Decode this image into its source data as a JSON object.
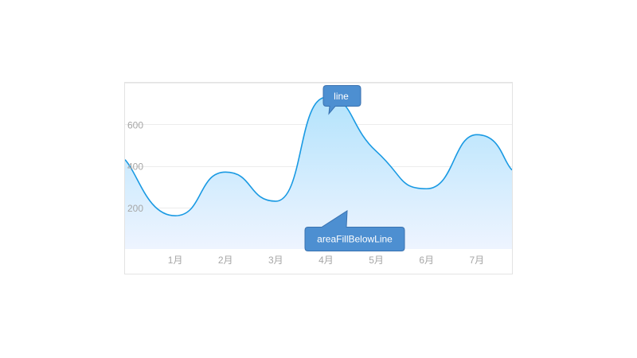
{
  "chart_data": {
    "type": "area",
    "categories": [
      "1月",
      "2月",
      "3月",
      "4月",
      "5月",
      "6月",
      "7月"
    ],
    "x_ticks": [
      "1月",
      "2月",
      "3月",
      "4月",
      "5月",
      "6月",
      "7月"
    ],
    "y_ticks": [
      "200",
      "400",
      "600"
    ],
    "ylim": [
      0,
      800
    ],
    "xlim": [
      0,
      7.7
    ],
    "grid": true,
    "series": [
      {
        "x": [
          0,
          1,
          2,
          3,
          4,
          5,
          6,
          7,
          7.7
        ],
        "values": [
          430,
          160,
          370,
          230,
          730,
          470,
          290,
          550,
          380
        ]
      }
    ],
    "annotations": [
      {
        "label": "line",
        "target": "line"
      },
      {
        "label": "areaFillBelowLine",
        "target": "area"
      }
    ],
    "colors": {
      "line": "#1a9ae3",
      "area_top": "#b3e3fc",
      "area_bottom": "#eef4ff",
      "callout_fill": "#4d8fd1",
      "callout_stroke": "#3a72b0",
      "grid": "#ececec",
      "frame": "#e3e3e3",
      "tick": "#a6a6a6"
    }
  }
}
